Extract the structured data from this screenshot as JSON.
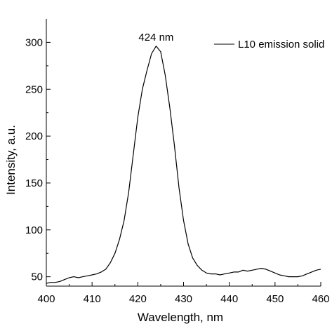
{
  "chart_data": {
    "type": "line",
    "xlabel": "Wavelength, nm",
    "ylabel": "Intensity, a.u.",
    "xlim": [
      400,
      460
    ],
    "ylim": [
      40,
      325
    ],
    "x_ticks": [
      400,
      410,
      420,
      430,
      440,
      450,
      460
    ],
    "y_ticks": [
      50,
      100,
      150,
      200,
      250,
      300
    ],
    "x_ticks_minor": [
      405,
      415,
      425,
      435,
      445,
      455
    ],
    "y_ticks_minor": [
      75,
      125,
      175,
      225,
      275
    ],
    "grid": false,
    "legend_position": "top-right",
    "series": [
      {
        "name": "L10 emission solid",
        "color": "#000000",
        "x": [
          400,
          401,
          402,
          403,
          404,
          405,
          406,
          407,
          408,
          409,
          410,
          411,
          412,
          413,
          414,
          415,
          416,
          417,
          418,
          419,
          420,
          421,
          422,
          423,
          424,
          425,
          426,
          427,
          428,
          429,
          430,
          431,
          432,
          433,
          434,
          435,
          436,
          437,
          438,
          439,
          440,
          441,
          442,
          443,
          444,
          445,
          446,
          447,
          448,
          449,
          450,
          451,
          452,
          453,
          454,
          455,
          456,
          457,
          458,
          459,
          460
        ],
        "values": [
          43,
          44,
          44,
          45,
          47,
          49,
          50,
          49,
          50,
          51,
          52,
          53,
          55,
          58,
          65,
          75,
          90,
          110,
          140,
          180,
          220,
          250,
          270,
          288,
          296,
          290,
          265,
          230,
          190,
          145,
          110,
          85,
          70,
          62,
          57,
          54,
          53,
          53,
          52,
          53,
          54,
          55,
          55,
          57,
          56,
          57,
          58,
          59,
          58,
          56,
          54,
          52,
          51,
          50,
          50,
          50,
          51,
          53,
          55,
          57,
          58
        ]
      }
    ],
    "annotations": [
      {
        "text": "424 nm",
        "x": 424,
        "y": 296
      }
    ]
  },
  "legend": {
    "label": "L10 emission solid",
    "color": "#000000"
  }
}
